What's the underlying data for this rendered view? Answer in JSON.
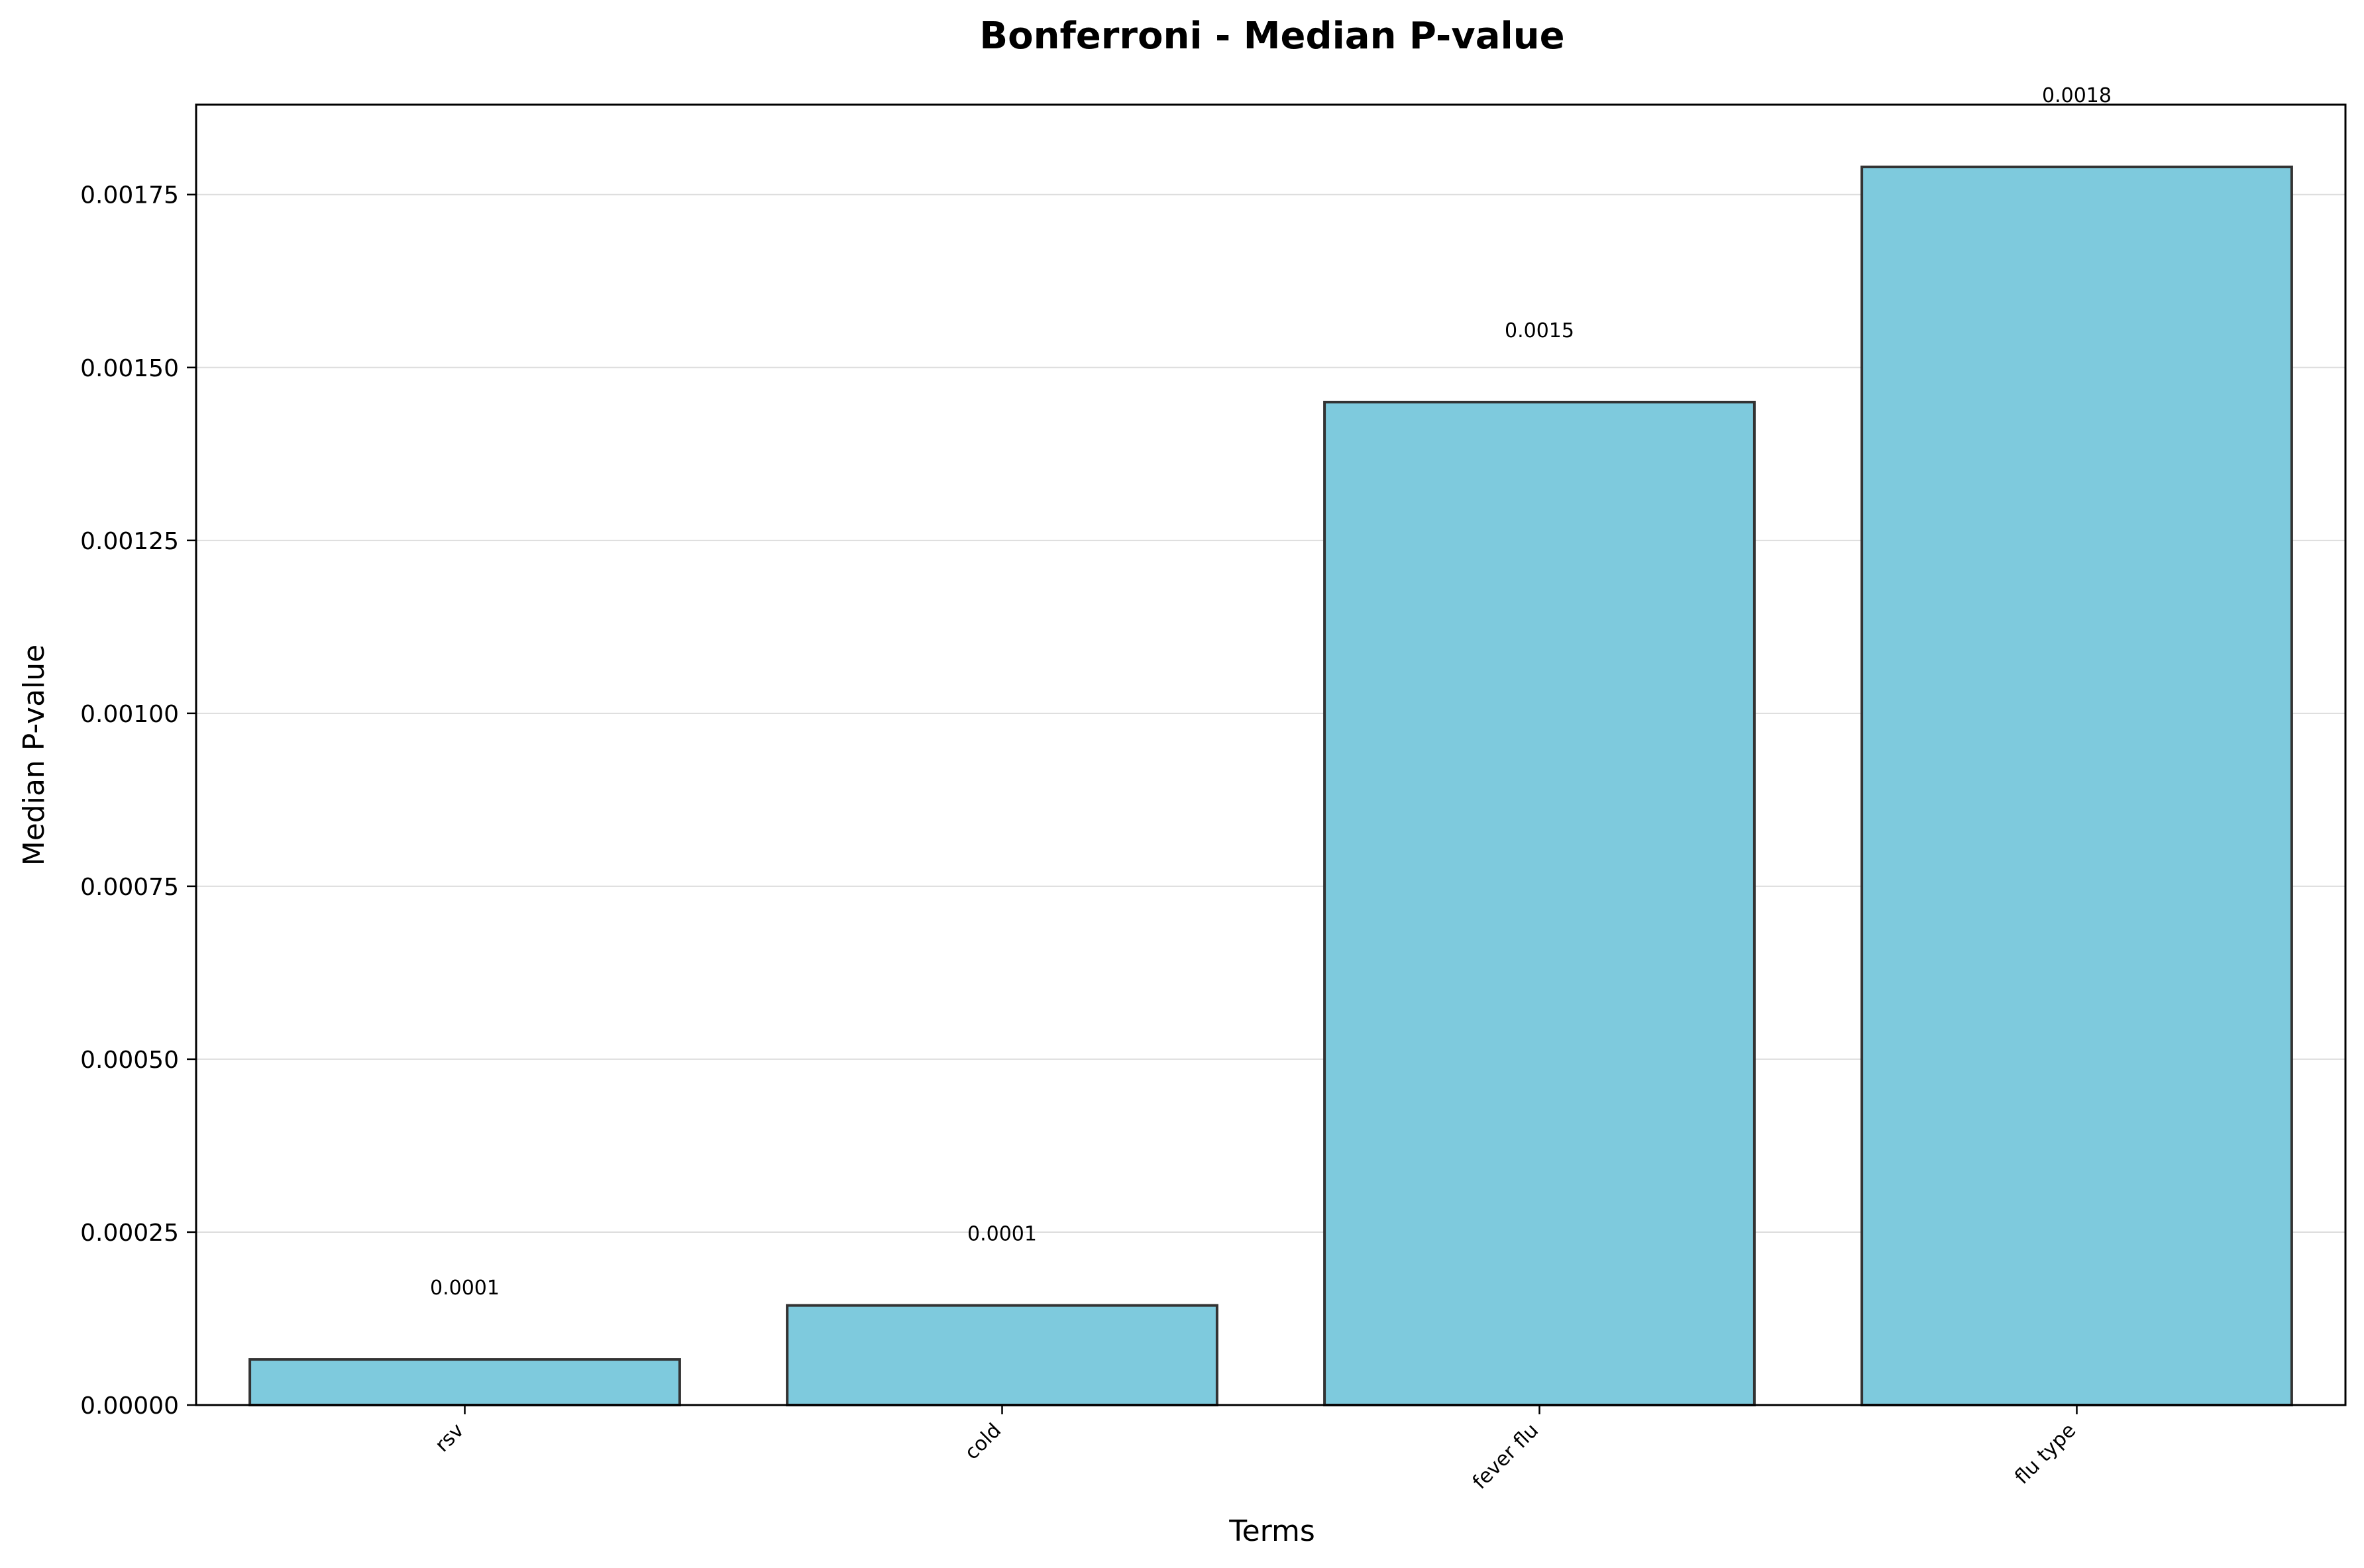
{
  "chart_data": {
    "type": "bar",
    "title": "Bonferroni - Median P-value",
    "xlabel": "Terms",
    "ylabel": "Median P-value",
    "categories": [
      "rsv",
      "cold",
      "fever flu",
      "flu type"
    ],
    "values": [
      6.6e-05,
      0.000144,
      0.00145,
      0.00179
    ],
    "data_labels": [
      "0.0001",
      "0.0001",
      "0.0015",
      "0.0018"
    ],
    "ylim": [
      0,
      0.00188
    ],
    "yticks": [
      0,
      0.00025,
      0.0005,
      0.00075,
      0.001,
      0.00125,
      0.0015,
      0.00175
    ],
    "ytick_labels": [
      "0.00000",
      "0.00025",
      "0.00050",
      "0.00075",
      "0.00100",
      "0.00125",
      "0.00150",
      "0.00175"
    ],
    "grid": "y",
    "bar_color": "#7ecadd",
    "edge_color": "#333333"
  }
}
